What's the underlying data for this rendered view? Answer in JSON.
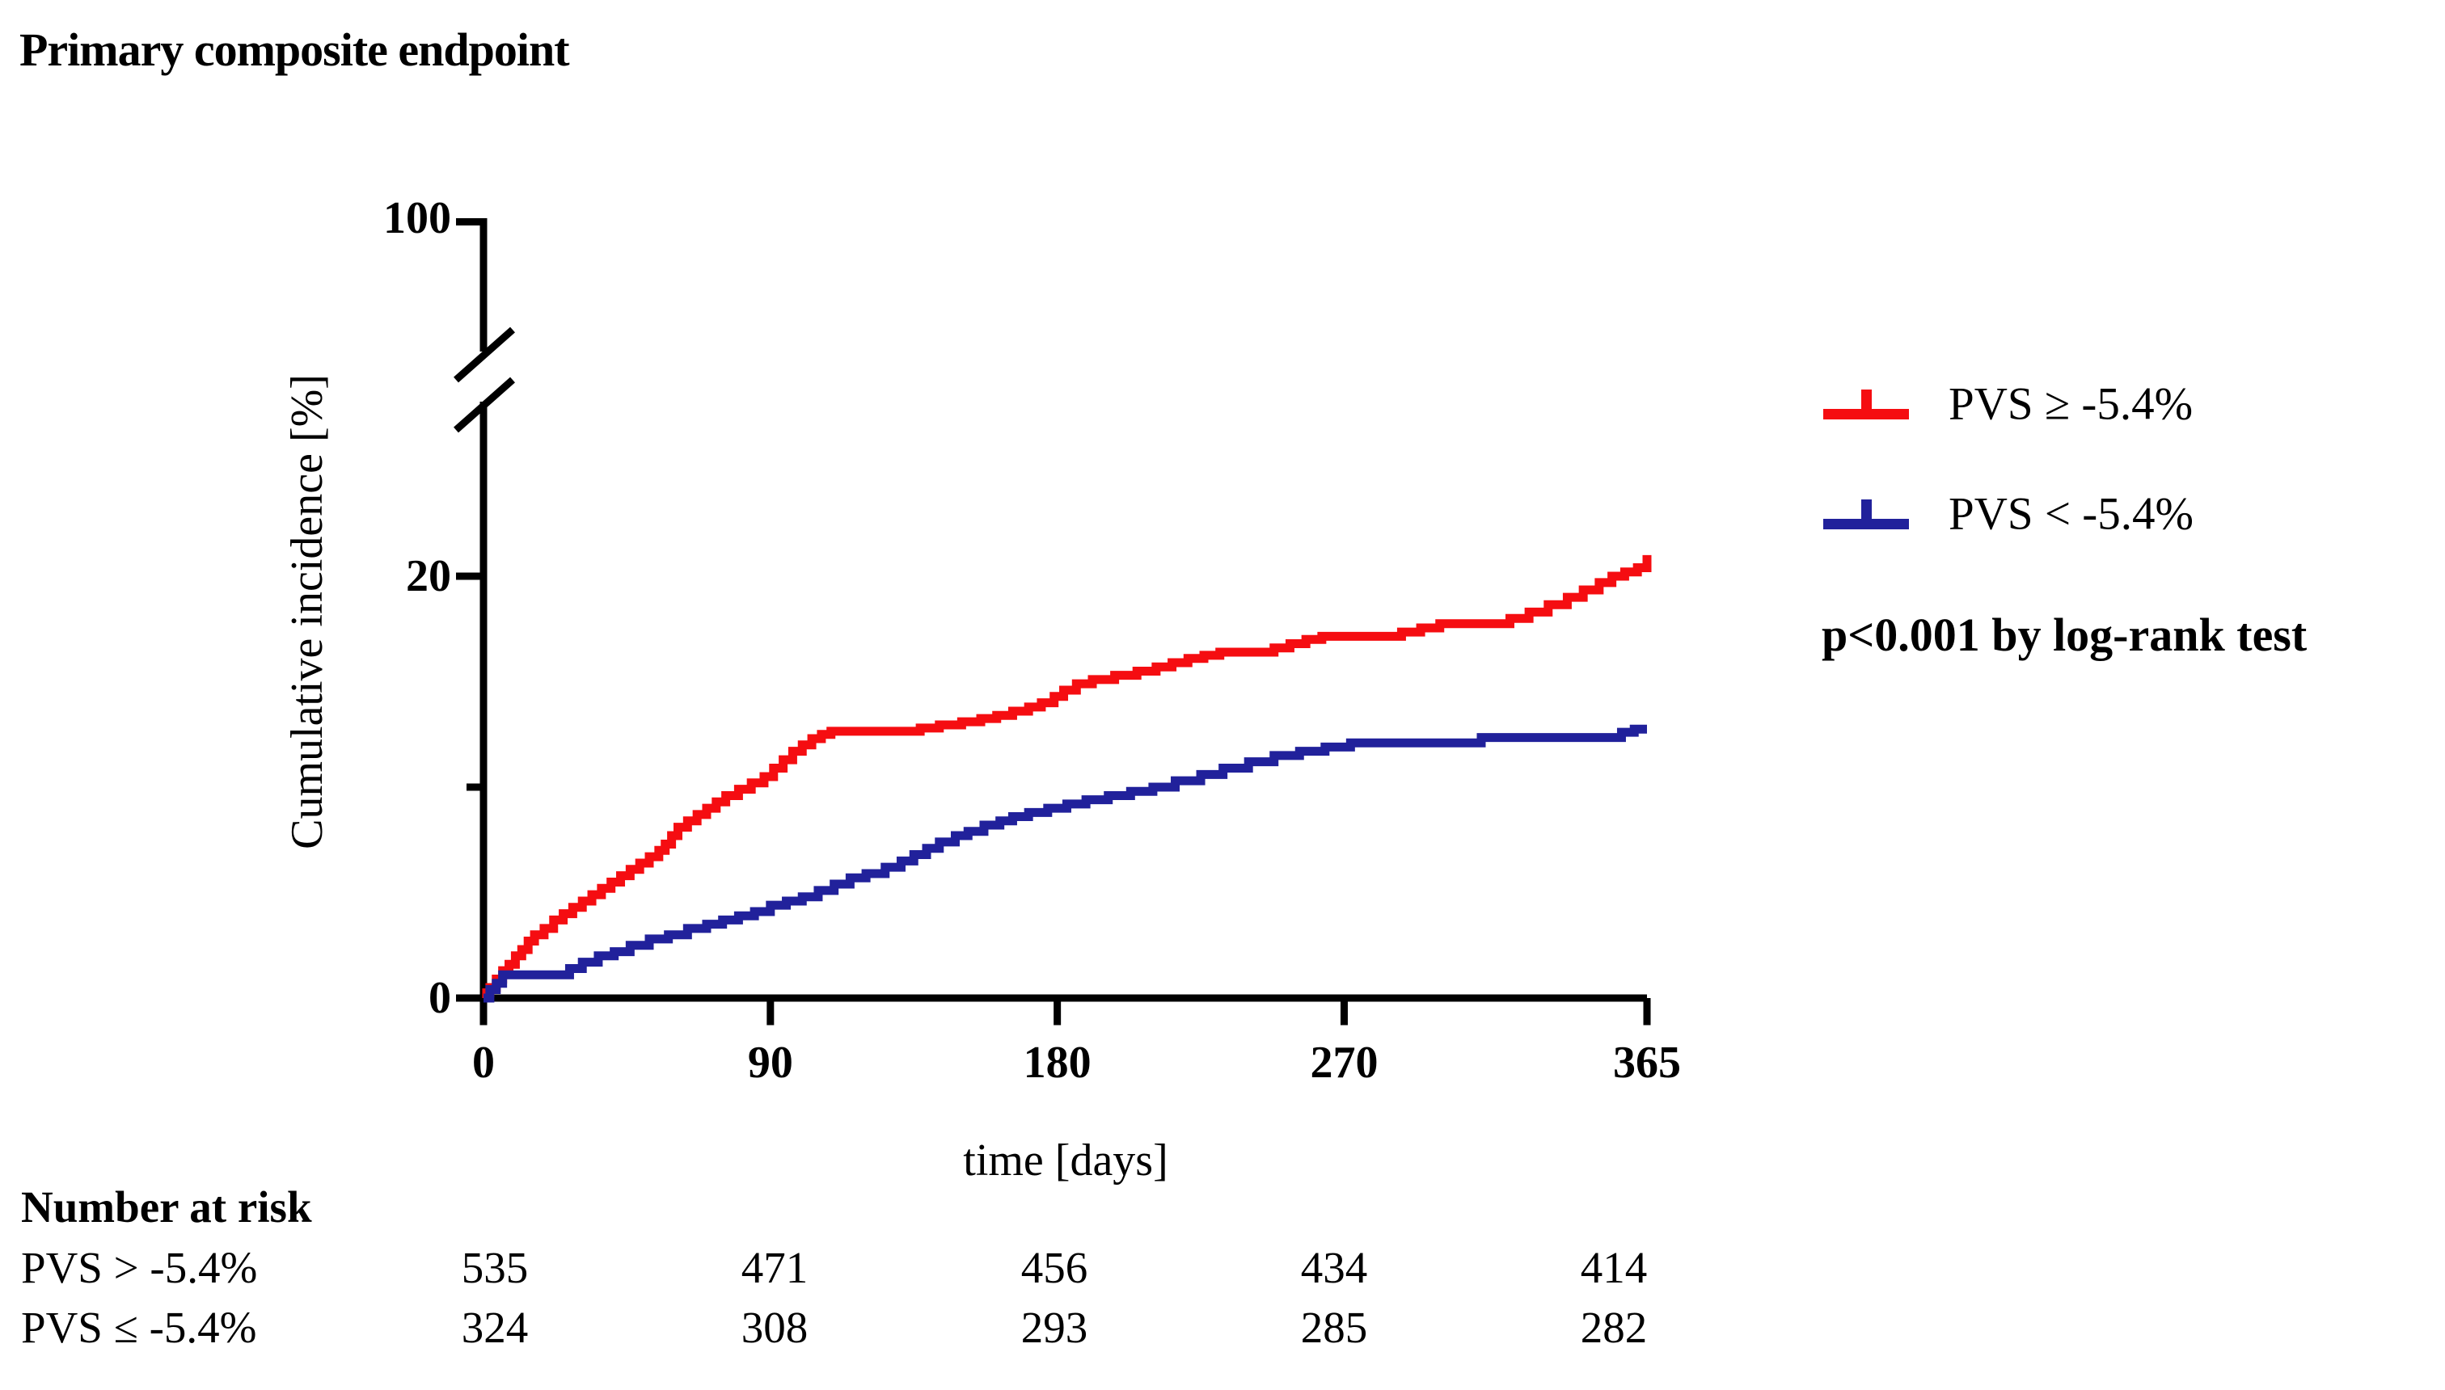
{
  "title": "Primary composite endpoint",
  "annotation": "p<0.001 by log-rank test",
  "colors": {
    "series_red": "#f50d11",
    "series_blue": "#21219b",
    "axis": "#000000",
    "background": "#ffffff"
  },
  "chart_data": {
    "type": "line",
    "subtype": "kaplan-meier-cumulative-incidence-step",
    "title": "Primary composite endpoint",
    "xlabel": "time [days]",
    "ylabel": "Cumulative incidence [%]",
    "xlim": [
      0,
      365
    ],
    "xticks": [
      0,
      90,
      180,
      270,
      365
    ],
    "yticks_labeled": [
      0,
      20,
      100
    ],
    "yticks_minor": [
      10
    ],
    "axis_break": {
      "present": true,
      "between": [
        28,
        100
      ],
      "style": "double-slash"
    },
    "grid": false,
    "legend_position": "right-outside",
    "annotation": "p<0.001 by log-rank test",
    "series": [
      {
        "name": "PVS ≥ -5.4%",
        "color": "#f50d11",
        "end_style": "tick-up",
        "points": [
          [
            0,
            0
          ],
          [
            1,
            0.25
          ],
          [
            2,
            0.5
          ],
          [
            4,
            0.9
          ],
          [
            6,
            1.3
          ],
          [
            8,
            1.6
          ],
          [
            10,
            2.0
          ],
          [
            12,
            2.3
          ],
          [
            14,
            2.7
          ],
          [
            16,
            3.0
          ],
          [
            19,
            3.3
          ],
          [
            22,
            3.7
          ],
          [
            25,
            4.0
          ],
          [
            28,
            4.3
          ],
          [
            31,
            4.6
          ],
          [
            34,
            4.9
          ],
          [
            37,
            5.2
          ],
          [
            40,
            5.5
          ],
          [
            43,
            5.8
          ],
          [
            46,
            6.1
          ],
          [
            49,
            6.4
          ],
          [
            52,
            6.7
          ],
          [
            55,
            7.0
          ],
          [
            57,
            7.3
          ],
          [
            59,
            7.7
          ],
          [
            61,
            8.1
          ],
          [
            64,
            8.4
          ],
          [
            67,
            8.7
          ],
          [
            70,
            9.0
          ],
          [
            73,
            9.3
          ],
          [
            76,
            9.6
          ],
          [
            80,
            9.9
          ],
          [
            84,
            10.2
          ],
          [
            88,
            10.5
          ],
          [
            91,
            10.9
          ],
          [
            94,
            11.3
          ],
          [
            97,
            11.7
          ],
          [
            100,
            12.0
          ],
          [
            103,
            12.3
          ],
          [
            106,
            12.5
          ],
          [
            109,
            12.65
          ],
          [
            137,
            12.8
          ],
          [
            143,
            12.95
          ],
          [
            150,
            13.1
          ],
          [
            156,
            13.25
          ],
          [
            161,
            13.4
          ],
          [
            166,
            13.6
          ],
          [
            171,
            13.8
          ],
          [
            175,
            14.0
          ],
          [
            179,
            14.3
          ],
          [
            182,
            14.6
          ],
          [
            186,
            14.9
          ],
          [
            191,
            15.1
          ],
          [
            198,
            15.3
          ],
          [
            205,
            15.5
          ],
          [
            211,
            15.7
          ],
          [
            216,
            15.9
          ],
          [
            221,
            16.1
          ],
          [
            226,
            16.25
          ],
          [
            231,
            16.4
          ],
          [
            248,
            16.6
          ],
          [
            253,
            16.8
          ],
          [
            258,
            17.0
          ],
          [
            263,
            17.15
          ],
          [
            288,
            17.35
          ],
          [
            294,
            17.55
          ],
          [
            300,
            17.75
          ],
          [
            322,
            18.0
          ],
          [
            328,
            18.3
          ],
          [
            334,
            18.65
          ],
          [
            340,
            19.0
          ],
          [
            345,
            19.35
          ],
          [
            350,
            19.7
          ],
          [
            354,
            20.0
          ],
          [
            358,
            20.2
          ],
          [
            362,
            20.4
          ],
          [
            365,
            21.0
          ]
        ]
      },
      {
        "name": "PVS < -5.4%",
        "color": "#21219b",
        "end_style": "flat",
        "points": [
          [
            0,
            0
          ],
          [
            2,
            0.4
          ],
          [
            4,
            0.7
          ],
          [
            6,
            1.1
          ],
          [
            27,
            1.4
          ],
          [
            31,
            1.7
          ],
          [
            36,
            2.0
          ],
          [
            41,
            2.2
          ],
          [
            46,
            2.5
          ],
          [
            52,
            2.8
          ],
          [
            58,
            3.0
          ],
          [
            64,
            3.3
          ],
          [
            70,
            3.5
          ],
          [
            75,
            3.7
          ],
          [
            80,
            3.9
          ],
          [
            85,
            4.1
          ],
          [
            90,
            4.4
          ],
          [
            95,
            4.6
          ],
          [
            100,
            4.8
          ],
          [
            105,
            5.1
          ],
          [
            110,
            5.4
          ],
          [
            115,
            5.7
          ],
          [
            120,
            5.9
          ],
          [
            126,
            6.2
          ],
          [
            131,
            6.5
          ],
          [
            135,
            6.8
          ],
          [
            139,
            7.1
          ],
          [
            143,
            7.4
          ],
          [
            148,
            7.7
          ],
          [
            152,
            7.9
          ],
          [
            157,
            8.2
          ],
          [
            162,
            8.4
          ],
          [
            166,
            8.6
          ],
          [
            171,
            8.8
          ],
          [
            177,
            9.0
          ],
          [
            183,
            9.2
          ],
          [
            189,
            9.4
          ],
          [
            196,
            9.6
          ],
          [
            203,
            9.8
          ],
          [
            210,
            10.0
          ],
          [
            217,
            10.3
          ],
          [
            225,
            10.6
          ],
          [
            232,
            10.9
          ],
          [
            240,
            11.2
          ],
          [
            248,
            11.5
          ],
          [
            256,
            11.7
          ],
          [
            264,
            11.9
          ],
          [
            272,
            12.1
          ],
          [
            313,
            12.35
          ],
          [
            357,
            12.6
          ],
          [
            361,
            12.75
          ],
          [
            365,
            12.75
          ]
        ]
      }
    ],
    "number_at_risk": {
      "header": "Number at risk",
      "timepoints": [
        0,
        90,
        180,
        270,
        365
      ],
      "rows": [
        {
          "label": "PVS > -5.4%",
          "values": [
            "535",
            "471",
            "456",
            "434",
            "414"
          ]
        },
        {
          "label": "PVS ≤ -5.4%",
          "values": [
            "324",
            "308",
            "293",
            "285",
            "282"
          ]
        }
      ]
    }
  },
  "legend": {
    "marker": "horizontal-line-with-censor-tick",
    "entries": [
      {
        "label": "PVS ≥ -5.4%",
        "color": "#f50d11"
      },
      {
        "label": "PVS < -5.4%",
        "color": "#21219b"
      }
    ]
  }
}
